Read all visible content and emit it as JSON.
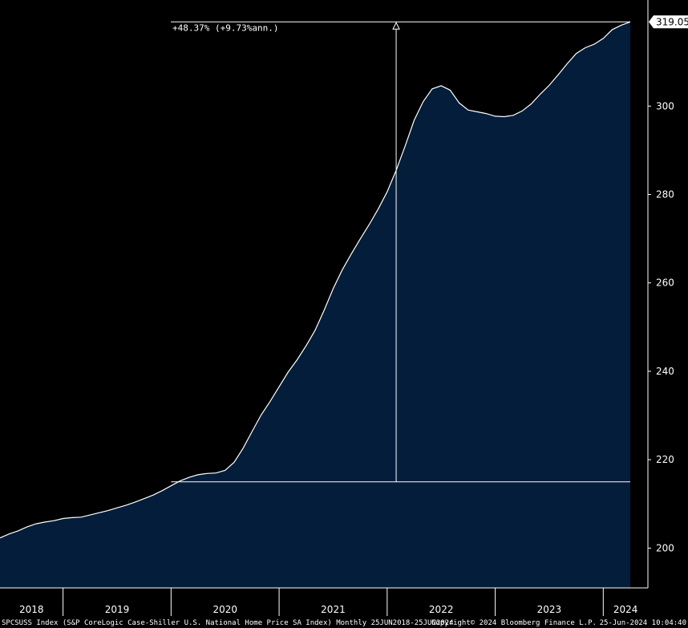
{
  "chart_data": {
    "type": "area",
    "colors": {
      "background": "#000000",
      "area_fill": "#041d3a",
      "line": "#ffffff",
      "axis": "#ffffff"
    },
    "x": [
      "2018-06",
      "2018-07",
      "2018-08",
      "2018-09",
      "2018-10",
      "2018-11",
      "2018-12",
      "2019-01",
      "2019-02",
      "2019-03",
      "2019-04",
      "2019-05",
      "2019-06",
      "2019-07",
      "2019-08",
      "2019-09",
      "2019-10",
      "2019-11",
      "2019-12",
      "2020-01",
      "2020-02",
      "2020-03",
      "2020-04",
      "2020-05",
      "2020-06",
      "2020-07",
      "2020-08",
      "2020-09",
      "2020-10",
      "2020-11",
      "2020-12",
      "2021-01",
      "2021-02",
      "2021-03",
      "2021-04",
      "2021-05",
      "2021-06",
      "2021-07",
      "2021-08",
      "2021-09",
      "2021-10",
      "2021-11",
      "2021-12",
      "2022-01",
      "2022-02",
      "2022-03",
      "2022-04",
      "2022-05",
      "2022-06",
      "2022-07",
      "2022-08",
      "2022-09",
      "2022-10",
      "2022-11",
      "2022-12",
      "2023-01",
      "2023-02",
      "2023-03",
      "2023-04",
      "2023-05",
      "2023-06",
      "2023-07",
      "2023-08",
      "2023-09",
      "2023-10",
      "2023-11",
      "2023-12",
      "2024-01",
      "2024-02",
      "2024-03",
      "2024-04"
    ],
    "values": [
      202.3,
      203.2,
      203.9,
      204.8,
      205.5,
      205.9,
      206.2,
      206.7,
      206.9,
      207.0,
      207.5,
      208.0,
      208.5,
      209.1,
      209.7,
      210.4,
      211.2,
      212.0,
      213.0,
      214.1,
      215.2,
      216.0,
      216.6,
      216.9,
      217.0,
      217.6,
      219.4,
      222.6,
      226.4,
      230.1,
      233.2,
      236.5,
      239.8,
      242.6,
      245.8,
      249.3,
      253.8,
      258.7,
      262.9,
      266.5,
      269.9,
      273.2,
      276.7,
      280.6,
      285.5,
      291.0,
      296.8,
      301.0,
      303.9,
      304.6,
      303.6,
      300.7,
      299.1,
      298.7,
      298.3,
      297.7,
      297.6,
      297.9,
      298.9,
      300.5,
      302.7,
      304.7,
      307.1,
      309.6,
      311.9,
      313.2,
      314.0,
      315.3,
      317.3,
      318.3,
      319.05
    ],
    "yticks": [
      200,
      220,
      240,
      260,
      280,
      300
    ],
    "ylim": [
      191,
      324
    ],
    "year_labels": [
      "2018",
      "2019",
      "2020",
      "2021",
      "2022",
      "2023",
      "2024"
    ],
    "last_value_label": "319.05",
    "annotation": {
      "text": "+48.37% (+9.73%ann.)",
      "base_value": 215.0,
      "top_value": 319.05,
      "base_date": "2020-01",
      "arrow_date": "2022-02"
    },
    "footer_left": "SPCSUSS Index (S&P CoreLogic Case-Shiller U.S. National Home Price SA Index)  Monthly 25JUN2018-25JUN2024",
    "footer_center": "Copyright© 2024 Bloomberg Finance L.P.",
    "footer_right": "25-Jun-2024 10:04:40"
  }
}
